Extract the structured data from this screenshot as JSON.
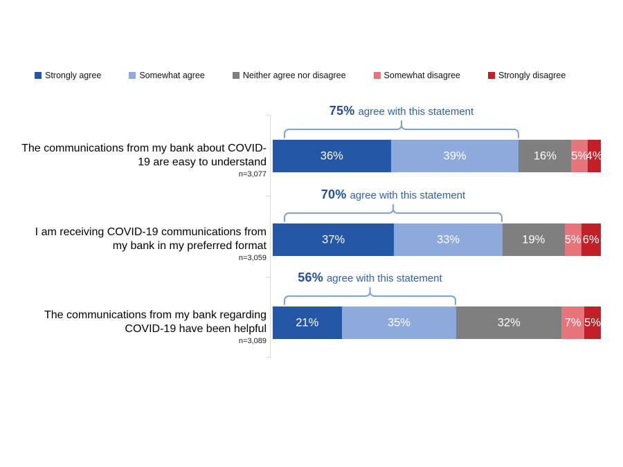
{
  "legend": {
    "items": [
      {
        "label": "Strongly agree",
        "color": "#2457a5"
      },
      {
        "label": "Somewhat agree",
        "color": "#8ea9db"
      },
      {
        "label": "Neither agree nor disagree",
        "color": "#7f7f7f"
      },
      {
        "label": "Somewhat disagree",
        "color": "#e7767c"
      },
      {
        "label": "Strongly disagree",
        "color": "#c21f28"
      }
    ]
  },
  "rows": [
    {
      "line1": "The communications from my bank about COVID-",
      "line2": "19 are easy to understand",
      "n": "n=3,077",
      "agree_label": "75%",
      "agree_text": "agree with this statement"
    },
    {
      "line1": "I am receiving COVID-19 communications from",
      "line2": "my bank in my preferred format",
      "n": "n=3,059",
      "agree_label": "70%",
      "agree_text": "agree with this statement"
    },
    {
      "line1": "The communications from my bank regarding",
      "line2": "COVID-19 have been helpful",
      "n": "n=3,089",
      "agree_label": "56%",
      "agree_text": "agree with this statement"
    }
  ],
  "chart_data": {
    "type": "bar",
    "orientation": "horizontal",
    "stacked": true,
    "unit": "percent",
    "xlim": [
      0,
      100
    ],
    "legend_position": "top",
    "grid": false,
    "categories": [
      "The communications from my bank about COVID-19 are easy to understand",
      "I am receiving COVID-19 communications from my bank in my preferred format",
      "The communications from my bank regarding COVID-19 have been helpful"
    ],
    "sample_sizes": [
      "n=3,077",
      "n=3,059",
      "n=3,089"
    ],
    "series": [
      {
        "name": "Strongly agree",
        "color": "#2457a5",
        "values": [
          36,
          37,
          21
        ]
      },
      {
        "name": "Somewhat agree",
        "color": "#8ea9db",
        "values": [
          39,
          33,
          35
        ]
      },
      {
        "name": "Neither agree nor disagree",
        "color": "#7f7f7f",
        "values": [
          16,
          19,
          32
        ]
      },
      {
        "name": "Somewhat disagree",
        "color": "#e7767c",
        "values": [
          5,
          5,
          7
        ]
      },
      {
        "name": "Strongly disagree",
        "color": "#c21f28",
        "values": [
          4,
          6,
          5
        ]
      }
    ],
    "annotations": [
      {
        "agree_total": 75,
        "label": "75%",
        "text": "agree with this statement"
      },
      {
        "agree_total": 70,
        "label": "70%",
        "text": "agree with this statement"
      },
      {
        "agree_total": 56,
        "label": "56%",
        "text": "agree with this statement"
      }
    ],
    "colors": {
      "annotation_pct": "#1f4e9d",
      "annotation_text": "#3060ae",
      "bracket": "#7e9fd8",
      "axis": "#d9d9d9",
      "bar_label": "#ffffff"
    }
  }
}
